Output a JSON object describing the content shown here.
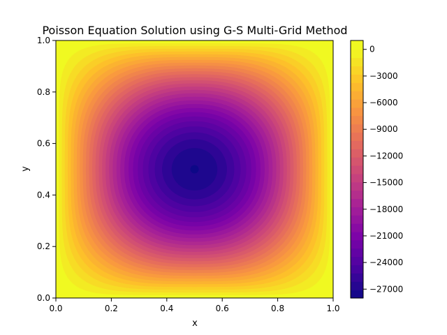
{
  "chart_data": {
    "type": "heatmap",
    "title": "Poisson Equation Solution using G-S Multi-Grid Method",
    "xlabel": "x",
    "ylabel": "y",
    "xlim": [
      0.0,
      1.0
    ],
    "ylim": [
      0.0,
      1.0
    ],
    "x_ticks": [
      "0.0",
      "0.2",
      "0.4",
      "0.6",
      "0.8",
      "1.0"
    ],
    "y_ticks": [
      "0.0",
      "0.2",
      "0.4",
      "0.6",
      "0.8",
      "1.0"
    ],
    "colormap": "plasma",
    "center": [
      0.5,
      0.5
    ],
    "min_value": -28000,
    "max_value": 0,
    "levels": 30,
    "colorbar": {
      "range": [
        -28000,
        1000
      ],
      "ticks": [
        "0",
        "−3000",
        "−6000",
        "−9000",
        "−12000",
        "−15000",
        "−18000",
        "−21000",
        "−24000",
        "−27000"
      ],
      "tick_values": [
        0,
        -3000,
        -6000,
        -9000,
        -12000,
        -15000,
        -18000,
        -21000,
        -24000,
        -27000
      ]
    },
    "grid": false,
    "colors": {
      "high": "#f0f921",
      "low": "#0d0887"
    }
  }
}
